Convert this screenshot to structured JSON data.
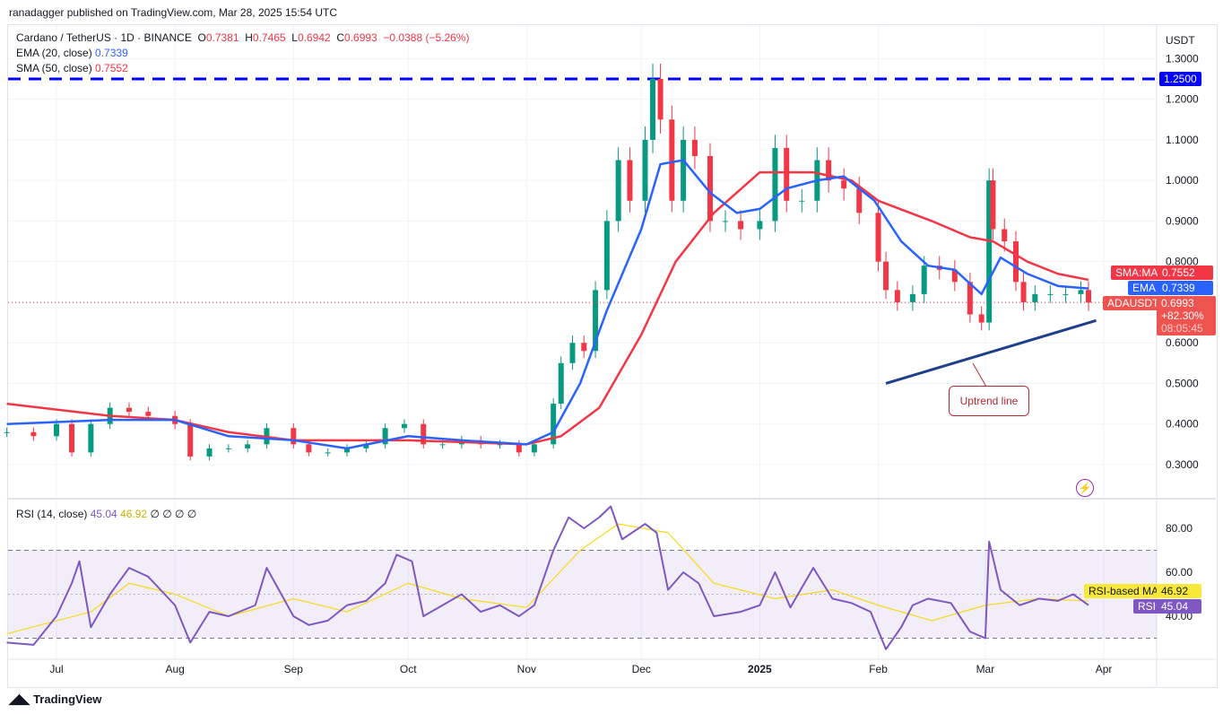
{
  "header": {
    "published": "ranadagger published on TradingView.com, Mar 28, 2025 15:54 UTC"
  },
  "legend": {
    "symbol": "Cardano / TetherUS · 1D · BINANCE",
    "o_label": "O",
    "o": "0.7381",
    "h_label": "H",
    "h": "0.7465",
    "l_label": "L",
    "l": "0.6942",
    "c_label": "C",
    "c": "0.6993",
    "change": "−0.0388 (−5.26%)",
    "ema_label": "EMA (20, close)",
    "ema": "0.7339",
    "sma_label": "SMA (50, close)",
    "sma": "0.7552",
    "rsi_label": "RSI (14, close)",
    "rsi": "45.04",
    "rsi_ma": "46.92",
    "rsi_extra": "∅ ∅ ∅ ∅"
  },
  "price_axis": {
    "currency": "USDT",
    "ticks": [
      "1.3000",
      "1.2000",
      "1.1000",
      "1.0000",
      "0.9000",
      "0.8000",
      "0.7000",
      "0.6000",
      "0.5000",
      "0.4000",
      "0.3000"
    ],
    "level_label": "1.2500",
    "sma_tag": "SMA:MA",
    "sma_value": "0.7552",
    "ema_tag": "EMA",
    "ema_value": "0.7339",
    "symbol_tag": "ADAUSDT",
    "last_price": "0.6993",
    "last_change": "+82.30%",
    "countdown": "08:05:45"
  },
  "rsi_axis": {
    "ticks": [
      "80.00",
      "60.00",
      "40.00"
    ],
    "ma_tag": "RSI-based MA",
    "ma_value": "46.92",
    "rsi_tag": "RSI",
    "rsi_value": "45.04"
  },
  "time_axis": {
    "labels": [
      [
        "Jul",
        "2024-07-01"
      ],
      [
        "Aug",
        "2024-08-01"
      ],
      [
        "Sep",
        "2024-09-01"
      ],
      [
        "Oct",
        "2024-10-01"
      ],
      [
        "Nov",
        "2024-11-01"
      ],
      [
        "Dec",
        "2024-12-01"
      ],
      [
        "2025",
        "2025-01-01"
      ],
      [
        "Feb",
        "2025-02-01"
      ],
      [
        "Mar",
        "2025-03-01"
      ],
      [
        "Apr",
        "2025-04-01"
      ]
    ]
  },
  "annotation": {
    "text": "Uptrend line"
  },
  "footer": {
    "brand": "TradingView"
  },
  "colors": {
    "up": "#089981",
    "down": "#f23645",
    "ema": "#2962ff",
    "sma": "#f23645",
    "rsi": "#7e57c2",
    "rsi_ma": "#f7d81b",
    "trendline": "#1e3f8a",
    "level": "#0000ff"
  },
  "chart_data": {
    "type": "candlestick",
    "title": "Cardano / TetherUS · 1D · BINANCE",
    "ylim": [
      0.22,
      1.34
    ],
    "horizontal_level": 1.25,
    "trendline": [
      [
        "2025-02-03",
        0.5
      ],
      [
        "2025-03-30",
        0.655
      ]
    ],
    "closes": [
      [
        "2024-06-18",
        0.38
      ],
      [
        "2024-06-25",
        0.37
      ],
      [
        "2024-07-01",
        0.4
      ],
      [
        "2024-07-05",
        0.33
      ],
      [
        "2024-07-10",
        0.4
      ],
      [
        "2024-07-15",
        0.44
      ],
      [
        "2024-07-20",
        0.43
      ],
      [
        "2024-07-25",
        0.42
      ],
      [
        "2024-08-01",
        0.4
      ],
      [
        "2024-08-05",
        0.32
      ],
      [
        "2024-08-10",
        0.34
      ],
      [
        "2024-08-15",
        0.34
      ],
      [
        "2024-08-20",
        0.35
      ],
      [
        "2024-08-25",
        0.39
      ],
      [
        "2024-09-01",
        0.35
      ],
      [
        "2024-09-05",
        0.33
      ],
      [
        "2024-09-10",
        0.33
      ],
      [
        "2024-09-15",
        0.34
      ],
      [
        "2024-09-20",
        0.35
      ],
      [
        "2024-09-25",
        0.39
      ],
      [
        "2024-09-30",
        0.4
      ],
      [
        "2024-10-05",
        0.35
      ],
      [
        "2024-10-10",
        0.35
      ],
      [
        "2024-10-15",
        0.36
      ],
      [
        "2024-10-20",
        0.35
      ],
      [
        "2024-10-25",
        0.35
      ],
      [
        "2024-10-30",
        0.33
      ],
      [
        "2024-11-03",
        0.35
      ],
      [
        "2024-11-08",
        0.45
      ],
      [
        "2024-11-10",
        0.55
      ],
      [
        "2024-11-13",
        0.6
      ],
      [
        "2024-11-16",
        0.58
      ],
      [
        "2024-11-19",
        0.73
      ],
      [
        "2024-11-22",
        0.9
      ],
      [
        "2024-11-25",
        1.05
      ],
      [
        "2024-11-28",
        0.95
      ],
      [
        "2024-12-02",
        1.1
      ],
      [
        "2024-12-04",
        1.25
      ],
      [
        "2024-12-06",
        1.15
      ],
      [
        "2024-12-09",
        0.95
      ],
      [
        "2024-12-12",
        1.1
      ],
      [
        "2024-12-15",
        1.06
      ],
      [
        "2024-12-19",
        0.9
      ],
      [
        "2024-12-23",
        0.9
      ],
      [
        "2024-12-27",
        0.88
      ],
      [
        "2025-01-01",
        0.9
      ],
      [
        "2025-01-05",
        1.08
      ],
      [
        "2025-01-08",
        0.95
      ],
      [
        "2025-01-12",
        0.95
      ],
      [
        "2025-01-16",
        1.05
      ],
      [
        "2025-01-19",
        1.0
      ],
      [
        "2025-01-23",
        0.98
      ],
      [
        "2025-01-27",
        0.92
      ],
      [
        "2025-02-01",
        0.8
      ],
      [
        "2025-02-03",
        0.73
      ],
      [
        "2025-02-06",
        0.7
      ],
      [
        "2025-02-10",
        0.72
      ],
      [
        "2025-02-13",
        0.79
      ],
      [
        "2025-02-17",
        0.78
      ],
      [
        "2025-02-21",
        0.75
      ],
      [
        "2025-02-25",
        0.67
      ],
      [
        "2025-02-28",
        0.65
      ],
      [
        "2025-03-02",
        1.0
      ],
      [
        "2025-03-03",
        0.88
      ],
      [
        "2025-03-06",
        0.85
      ],
      [
        "2025-03-09",
        0.75
      ],
      [
        "2025-03-11",
        0.7
      ],
      [
        "2025-03-14",
        0.72
      ],
      [
        "2025-03-18",
        0.72
      ],
      [
        "2025-03-22",
        0.72
      ],
      [
        "2025-03-26",
        0.73
      ],
      [
        "2025-03-28",
        0.6993
      ]
    ],
    "ema20": [
      [
        "2024-06-18",
        0.4
      ],
      [
        "2024-07-15",
        0.41
      ],
      [
        "2024-08-01",
        0.41
      ],
      [
        "2024-08-15",
        0.37
      ],
      [
        "2024-09-01",
        0.36
      ],
      [
        "2024-09-15",
        0.34
      ],
      [
        "2024-10-01",
        0.37
      ],
      [
        "2024-10-15",
        0.36
      ],
      [
        "2024-11-01",
        0.35
      ],
      [
        "2024-11-08",
        0.38
      ],
      [
        "2024-11-15",
        0.5
      ],
      [
        "2024-11-22",
        0.68
      ],
      [
        "2024-12-01",
        0.88
      ],
      [
        "2024-12-06",
        1.04
      ],
      [
        "2024-12-12",
        1.05
      ],
      [
        "2024-12-19",
        0.97
      ],
      [
        "2024-12-26",
        0.92
      ],
      [
        "2025-01-01",
        0.93
      ],
      [
        "2025-01-08",
        0.98
      ],
      [
        "2025-01-16",
        1.0
      ],
      [
        "2025-01-23",
        1.01
      ],
      [
        "2025-01-31",
        0.95
      ],
      [
        "2025-02-07",
        0.85
      ],
      [
        "2025-02-14",
        0.79
      ],
      [
        "2025-02-21",
        0.78
      ],
      [
        "2025-02-28",
        0.72
      ],
      [
        "2025-03-05",
        0.81
      ],
      [
        "2025-03-12",
        0.77
      ],
      [
        "2025-03-20",
        0.74
      ],
      [
        "2025-03-28",
        0.7339
      ]
    ],
    "sma50": [
      [
        "2024-06-18",
        0.45
      ],
      [
        "2024-07-15",
        0.42
      ],
      [
        "2024-08-01",
        0.41
      ],
      [
        "2024-08-15",
        0.38
      ],
      [
        "2024-09-01",
        0.36
      ],
      [
        "2024-10-01",
        0.36
      ],
      [
        "2024-11-01",
        0.35
      ],
      [
        "2024-11-10",
        0.37
      ],
      [
        "2024-11-20",
        0.44
      ],
      [
        "2024-12-01",
        0.62
      ],
      [
        "2024-12-10",
        0.8
      ],
      [
        "2024-12-20",
        0.92
      ],
      [
        "2025-01-01",
        1.02
      ],
      [
        "2025-01-15",
        1.02
      ],
      [
        "2025-01-25",
        1.0
      ],
      [
        "2025-02-01",
        0.95
      ],
      [
        "2025-02-15",
        0.9
      ],
      [
        "2025-02-25",
        0.86
      ],
      [
        "2025-03-03",
        0.85
      ],
      [
        "2025-03-12",
        0.8
      ],
      [
        "2025-03-20",
        0.77
      ],
      [
        "2025-03-28",
        0.7552
      ]
    ],
    "rsi": {
      "ylim": [
        20,
        95
      ],
      "bands": [
        30,
        70
      ],
      "values": [
        [
          "2024-06-18",
          28
        ],
        [
          "2024-06-25",
          27
        ],
        [
          "2024-07-01",
          40
        ],
        [
          "2024-07-05",
          55
        ],
        [
          "2024-07-07",
          65
        ],
        [
          "2024-07-10",
          35
        ],
        [
          "2024-07-15",
          50
        ],
        [
          "2024-07-20",
          62
        ],
        [
          "2024-07-25",
          58
        ],
        [
          "2024-08-01",
          45
        ],
        [
          "2024-08-05",
          28
        ],
        [
          "2024-08-10",
          42
        ],
        [
          "2024-08-15",
          40
        ],
        [
          "2024-08-22",
          45
        ],
        [
          "2024-08-25",
          62
        ],
        [
          "2024-09-01",
          40
        ],
        [
          "2024-09-05",
          36
        ],
        [
          "2024-09-10",
          38
        ],
        [
          "2024-09-15",
          45
        ],
        [
          "2024-09-20",
          47
        ],
        [
          "2024-09-25",
          55
        ],
        [
          "2024-09-28",
          68
        ],
        [
          "2024-10-02",
          65
        ],
        [
          "2024-10-05",
          40
        ],
        [
          "2024-10-10",
          45
        ],
        [
          "2024-10-15",
          50
        ],
        [
          "2024-10-20",
          42
        ],
        [
          "2024-10-25",
          45
        ],
        [
          "2024-10-30",
          40
        ],
        [
          "2024-11-03",
          45
        ],
        [
          "2024-11-08",
          70
        ],
        [
          "2024-11-12",
          85
        ],
        [
          "2024-11-16",
          80
        ],
        [
          "2024-11-20",
          85
        ],
        [
          "2024-11-23",
          90
        ],
        [
          "2024-11-26",
          75
        ],
        [
          "2024-12-02",
          82
        ],
        [
          "2024-12-05",
          78
        ],
        [
          "2024-12-08",
          52
        ],
        [
          "2024-12-12",
          60
        ],
        [
          "2024-12-16",
          55
        ],
        [
          "2024-12-20",
          40
        ],
        [
          "2024-12-27",
          42
        ],
        [
          "2025-01-01",
          45
        ],
        [
          "2025-01-05",
          60
        ],
        [
          "2025-01-09",
          44
        ],
        [
          "2025-01-15",
          62
        ],
        [
          "2025-01-20",
          48
        ],
        [
          "2025-01-25",
          46
        ],
        [
          "2025-01-30",
          42
        ],
        [
          "2025-02-03",
          25
        ],
        [
          "2025-02-07",
          35
        ],
        [
          "2025-02-10",
          45
        ],
        [
          "2025-02-14",
          48
        ],
        [
          "2025-02-20",
          46
        ],
        [
          "2025-02-25",
          33
        ],
        [
          "2025-03-01",
          30
        ],
        [
          "2025-03-02",
          74
        ],
        [
          "2025-03-05",
          52
        ],
        [
          "2025-03-10",
          45
        ],
        [
          "2025-03-15",
          48
        ],
        [
          "2025-03-20",
          47
        ],
        [
          "2025-03-24",
          50
        ],
        [
          "2025-03-28",
          45.04
        ]
      ],
      "ma": [
        [
          "2024-06-18",
          32
        ],
        [
          "2024-07-10",
          42
        ],
        [
          "2024-07-20",
          55
        ],
        [
          "2024-08-01",
          50
        ],
        [
          "2024-08-15",
          40
        ],
        [
          "2024-09-01",
          48
        ],
        [
          "2024-09-15",
          42
        ],
        [
          "2024-10-01",
          55
        ],
        [
          "2024-10-15",
          48
        ],
        [
          "2024-11-01",
          44
        ],
        [
          "2024-11-15",
          70
        ],
        [
          "2024-11-25",
          82
        ],
        [
          "2024-12-08",
          78
        ],
        [
          "2024-12-20",
          55
        ],
        [
          "2025-01-05",
          48
        ],
        [
          "2025-01-20",
          52
        ],
        [
          "2025-02-01",
          45
        ],
        [
          "2025-02-15",
          38
        ],
        [
          "2025-03-01",
          45
        ],
        [
          "2025-03-15",
          48
        ],
        [
          "2025-03-28",
          46.92
        ]
      ]
    }
  }
}
